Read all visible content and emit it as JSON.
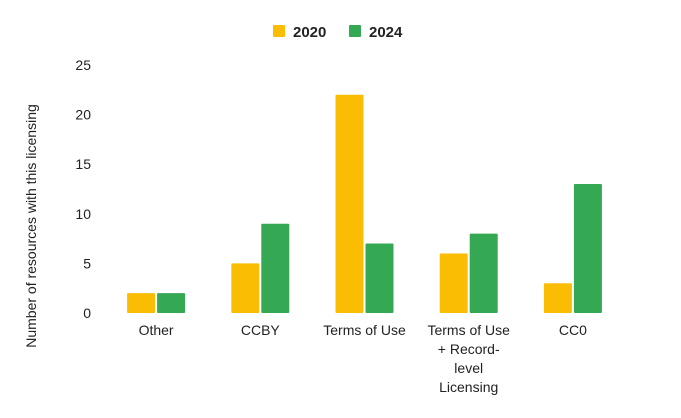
{
  "chart_data": {
    "type": "bar",
    "title": "",
    "xlabel": "",
    "ylabel": "Number of resources with this licensing",
    "categories": [
      "Other",
      "CCBY",
      "Terms of Use",
      "Terms of Use + Record-level Licensing",
      "CC0"
    ],
    "series": [
      {
        "name": "2020",
        "color": "#FBBC04",
        "values": [
          2,
          5,
          22,
          6,
          3
        ]
      },
      {
        "name": "2024",
        "color": "#34A853",
        "values": [
          2,
          9,
          7,
          8,
          13
        ]
      }
    ],
    "ylim": [
      0,
      25
    ],
    "yticks": [
      0,
      5,
      10,
      15,
      20,
      25
    ],
    "grid": false,
    "legend": "top"
  }
}
